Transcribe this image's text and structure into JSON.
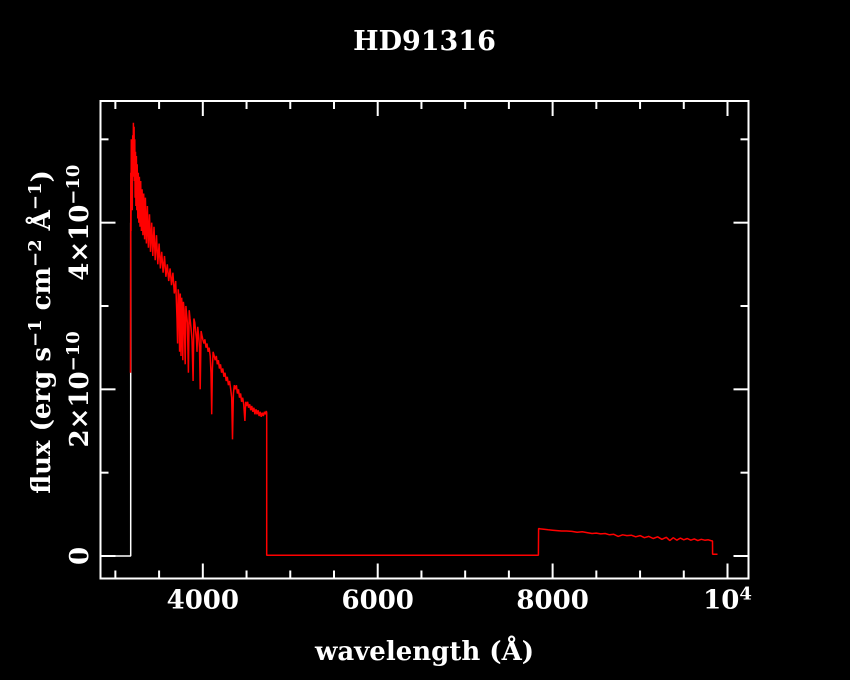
{
  "window": {
    "background": "#000000"
  },
  "chart_data": {
    "type": "line",
    "title": "HD91316",
    "xlabel": "wavelength (Å)",
    "ylabel_plain": "flux (erg s−1 cm−2 Å−1)",
    "ylabel_parts": [
      {
        "t": "flux (erg s"
      },
      {
        "t": "−1",
        "sup": true
      },
      {
        "t": " cm"
      },
      {
        "t": "−2",
        "sup": true
      },
      {
        "t": " Å"
      },
      {
        "t": "−1",
        "sup": true
      },
      {
        "t": ")"
      }
    ],
    "x_axis": {
      "lim": [
        2830,
        10240
      ],
      "major_ticks": [
        {
          "value": 4000,
          "label": "4000"
        },
        {
          "value": 6000,
          "label": "6000"
        },
        {
          "value": 8000,
          "label": "8000"
        },
        {
          "value": 10000,
          "label_base": "10",
          "label_exp": "4"
        }
      ],
      "minor_ticks": [
        3000,
        3500,
        4500,
        5000,
        5500,
        6500,
        7000,
        7500,
        8500,
        9000,
        9500
      ]
    },
    "y_axis": {
      "unit_scale": "1e-10",
      "lim": [
        -0.27,
        5.46
      ],
      "major_ticks": [
        {
          "value": 0,
          "label": "0"
        },
        {
          "value": 2,
          "label_base": "2×10",
          "label_exp": "−10"
        },
        {
          "value": 4,
          "label_base": "4×10",
          "label_exp": "−10"
        }
      ],
      "minor_ticks": [
        1,
        3,
        5
      ]
    },
    "colors": {
      "background": "#000000",
      "axes": "#ffffff",
      "spectrum": "#ff0000",
      "underlay": "#ffffff"
    },
    "series": [
      {
        "name": "spectrum-underlay-white",
        "color": "#ffffff",
        "points": [
          [
            2830,
            0
          ],
          [
            3175,
            0
          ],
          [
            3175,
            4.0
          ]
        ]
      },
      {
        "name": "spectrum-hd91316",
        "color": "#ff0000",
        "points": [
          [
            3173,
            2.2
          ],
          [
            3176,
            4.6
          ],
          [
            3179,
            3.9
          ],
          [
            3182,
            5.0
          ],
          [
            3186,
            4.3
          ],
          [
            3190,
            4.9
          ],
          [
            3194,
            4.15
          ],
          [
            3198,
            5.05
          ],
          [
            3202,
            4.55
          ],
          [
            3206,
            5.2
          ],
          [
            3210,
            4.7
          ],
          [
            3214,
            5.15
          ],
          [
            3218,
            4.5
          ],
          [
            3222,
            5.0
          ],
          [
            3226,
            4.3
          ],
          [
            3230,
            4.85
          ],
          [
            3235,
            4.2
          ],
          [
            3240,
            4.8
          ],
          [
            3245,
            4.15
          ],
          [
            3250,
            4.7
          ],
          [
            3256,
            4.05
          ],
          [
            3262,
            4.6
          ],
          [
            3268,
            4.0
          ],
          [
            3275,
            4.55
          ],
          [
            3282,
            3.95
          ],
          [
            3290,
            4.5
          ],
          [
            3298,
            3.9
          ],
          [
            3306,
            4.4
          ],
          [
            3315,
            3.85
          ],
          [
            3324,
            4.35
          ],
          [
            3334,
            3.8
          ],
          [
            3344,
            4.3
          ],
          [
            3355,
            3.75
          ],
          [
            3366,
            4.2
          ],
          [
            3378,
            3.7
          ],
          [
            3390,
            4.1
          ],
          [
            3402,
            3.65
          ],
          [
            3415,
            4.0
          ],
          [
            3428,
            3.6
          ],
          [
            3442,
            3.95
          ],
          [
            3456,
            3.55
          ],
          [
            3470,
            3.85
          ],
          [
            3485,
            3.5
          ],
          [
            3500,
            3.75
          ],
          [
            3515,
            3.45
          ],
          [
            3530,
            3.65
          ],
          [
            3546,
            3.4
          ],
          [
            3562,
            3.6
          ],
          [
            3578,
            3.35
          ],
          [
            3594,
            3.5
          ],
          [
            3610,
            3.3
          ],
          [
            3626,
            3.45
          ],
          [
            3642,
            3.25
          ],
          [
            3658,
            3.4
          ],
          [
            3674,
            3.15
          ],
          [
            3690,
            3.3
          ],
          [
            3705,
            2.85
          ],
          [
            3712,
            2.55
          ],
          [
            3718,
            3.2
          ],
          [
            3726,
            3.1
          ],
          [
            3734,
            2.45
          ],
          [
            3742,
            3.15
          ],
          [
            3750,
            2.4
          ],
          [
            3758,
            3.1
          ],
          [
            3764,
            2.9
          ],
          [
            3771,
            2.35
          ],
          [
            3778,
            3.05
          ],
          [
            3786,
            2.95
          ],
          [
            3798,
            2.3
          ],
          [
            3806,
            3.0
          ],
          [
            3815,
            2.9
          ],
          [
            3824,
            2.8
          ],
          [
            3835,
            2.2
          ],
          [
            3844,
            2.95
          ],
          [
            3854,
            2.85
          ],
          [
            3864,
            2.75
          ],
          [
            3876,
            2.6
          ],
          [
            3889,
            2.1
          ],
          [
            3898,
            2.85
          ],
          [
            3908,
            2.8
          ],
          [
            3918,
            2.7
          ],
          [
            3928,
            2.6
          ],
          [
            3934,
            2.45
          ],
          [
            3942,
            2.75
          ],
          [
            3952,
            2.65
          ],
          [
            3962,
            2.5
          ],
          [
            3970,
            2.0
          ],
          [
            3980,
            2.7
          ],
          [
            3990,
            2.65
          ],
          [
            4000,
            2.6
          ],
          [
            4012,
            2.55
          ],
          [
            4024,
            2.6
          ],
          [
            4036,
            2.5
          ],
          [
            4048,
            2.55
          ],
          [
            4060,
            2.45
          ],
          [
            4072,
            2.5
          ],
          [
            4084,
            2.4
          ],
          [
            4094,
            2.2
          ],
          [
            4102,
            1.7
          ],
          [
            4110,
            2.25
          ],
          [
            4118,
            2.45
          ],
          [
            4130,
            2.4
          ],
          [
            4142,
            2.35
          ],
          [
            4154,
            2.4
          ],
          [
            4166,
            2.3
          ],
          [
            4178,
            2.35
          ],
          [
            4190,
            2.25
          ],
          [
            4202,
            2.3
          ],
          [
            4215,
            2.2
          ],
          [
            4228,
            2.25
          ],
          [
            4241,
            2.15
          ],
          [
            4254,
            2.2
          ],
          [
            4267,
            2.1
          ],
          [
            4280,
            2.15
          ],
          [
            4293,
            2.05
          ],
          [
            4306,
            2.1
          ],
          [
            4319,
            2.0
          ],
          [
            4330,
            1.9
          ],
          [
            4340,
            1.4
          ],
          [
            4350,
            1.95
          ],
          [
            4360,
            2.05
          ],
          [
            4372,
            2.0
          ],
          [
            4384,
            2.05
          ],
          [
            4396,
            1.95
          ],
          [
            4408,
            2.0
          ],
          [
            4420,
            1.9
          ],
          [
            4432,
            1.95
          ],
          [
            4444,
            1.85
          ],
          [
            4456,
            1.9
          ],
          [
            4468,
            1.82
          ],
          [
            4481,
            1.62
          ],
          [
            4490,
            1.85
          ],
          [
            4500,
            1.8
          ],
          [
            4512,
            1.85
          ],
          [
            4524,
            1.78
          ],
          [
            4536,
            1.82
          ],
          [
            4548,
            1.75
          ],
          [
            4560,
            1.8
          ],
          [
            4572,
            1.73
          ],
          [
            4584,
            1.78
          ],
          [
            4596,
            1.7
          ],
          [
            4608,
            1.76
          ],
          [
            4620,
            1.7
          ],
          [
            4632,
            1.75
          ],
          [
            4644,
            1.68
          ],
          [
            4656,
            1.73
          ],
          [
            4668,
            1.67
          ],
          [
            4680,
            1.72
          ],
          [
            4692,
            1.68
          ],
          [
            4704,
            1.73
          ],
          [
            4716,
            1.7
          ],
          [
            4726,
            1.74
          ],
          [
            4730,
            1.72
          ],
          [
            4731,
            0.01
          ],
          [
            5000,
            0.01
          ],
          [
            5500,
            0.01
          ],
          [
            6000,
            0.01
          ],
          [
            6500,
            0.01
          ],
          [
            7000,
            0.01
          ],
          [
            7500,
            0.01
          ],
          [
            7837,
            0.01
          ],
          [
            7840,
            0.33
          ],
          [
            7860,
            0.325
          ],
          [
            7900,
            0.32
          ],
          [
            7950,
            0.315
          ],
          [
            8000,
            0.31
          ],
          [
            8050,
            0.305
          ],
          [
            8100,
            0.3
          ],
          [
            8160,
            0.3
          ],
          [
            8220,
            0.295
          ],
          [
            8280,
            0.285
          ],
          [
            8340,
            0.29
          ],
          [
            8400,
            0.28
          ],
          [
            8450,
            0.27
          ],
          [
            8500,
            0.275
          ],
          [
            8550,
            0.265
          ],
          [
            8600,
            0.27
          ],
          [
            8650,
            0.255
          ],
          [
            8700,
            0.26
          ],
          [
            8750,
            0.235
          ],
          [
            8800,
            0.255
          ],
          [
            8850,
            0.245
          ],
          [
            8900,
            0.25
          ],
          [
            8950,
            0.23
          ],
          [
            9000,
            0.245
          ],
          [
            9050,
            0.22
          ],
          [
            9100,
            0.235
          ],
          [
            9150,
            0.21
          ],
          [
            9200,
            0.23
          ],
          [
            9250,
            0.2
          ],
          [
            9300,
            0.225
          ],
          [
            9340,
            0.185
          ],
          [
            9380,
            0.22
          ],
          [
            9420,
            0.19
          ],
          [
            9460,
            0.215
          ],
          [
            9500,
            0.195
          ],
          [
            9540,
            0.21
          ],
          [
            9580,
            0.19
          ],
          [
            9620,
            0.205
          ],
          [
            9660,
            0.185
          ],
          [
            9700,
            0.2
          ],
          [
            9740,
            0.19
          ],
          [
            9780,
            0.195
          ],
          [
            9810,
            0.185
          ],
          [
            9828,
            0.18
          ],
          [
            9830,
            0.02
          ],
          [
            9885,
            0.02
          ]
        ]
      }
    ]
  }
}
